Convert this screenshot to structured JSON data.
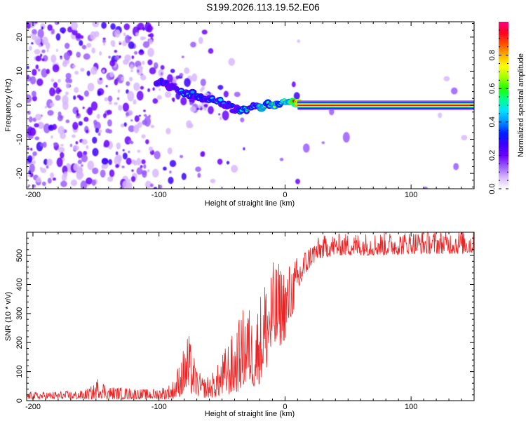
{
  "title": "S199.2026.113.19.52.E06",
  "chart_data": [
    {
      "type": "heatmap",
      "name": "spectrogram",
      "xlabel": "Height of straight line (km)",
      "ylabel": "Frequency (Hz)",
      "xlim": [
        -205,
        150
      ],
      "ylim": [
        -24.5,
        24.5
      ],
      "xticks": [
        -200,
        -100,
        0,
        100
      ],
      "yticks": [
        -20,
        -10,
        0,
        10,
        20
      ],
      "colorbar": {
        "label": "Normalized spectral amplitude",
        "range": [
          0,
          1
        ],
        "ticks": [
          0.0,
          0.2,
          0.4,
          0.6,
          0.8
        ],
        "colors": [
          "#ffffff",
          "#d8b8ff",
          "#9a5cff",
          "#6a00ff",
          "#3a00ff",
          "#0020ff",
          "#0090ff",
          "#00e0ff",
          "#00ff90",
          "#20ff00",
          "#a0ff00",
          "#ffff00",
          "#ffb000",
          "#ff5000",
          "#ff0020",
          "#ff0080"
        ]
      },
      "ridge": {
        "x": [
          -100,
          -92,
          -85,
          -78,
          -72,
          -65,
          -58,
          -52,
          -46,
          -40,
          -35,
          -30,
          -25,
          -20,
          -15,
          -10,
          -5,
          0,
          5,
          10,
          20,
          60,
          100,
          150
        ],
        "frequency": [
          7,
          5.5,
          4.5,
          3.5,
          3,
          2.2,
          1.5,
          1,
          0.2,
          -1.2,
          -1.5,
          -1.6,
          -0.5,
          -0.8,
          0.5,
          0,
          0.8,
          1.5,
          0.8,
          0.3,
          0,
          0,
          0,
          0
        ],
        "amplitude": [
          0.35,
          0.3,
          0.38,
          0.42,
          0.4,
          0.4,
          0.4,
          0.42,
          0.38,
          0.3,
          0.5,
          0.55,
          0.45,
          0.5,
          0.55,
          0.55,
          0.6,
          0.62,
          0.7,
          0.9,
          0.95,
          0.95,
          0.95,
          0.95
        ]
      }
    },
    {
      "type": "line",
      "name": "snr",
      "xlabel": "Height of straight line (km)",
      "ylabel": "SNR (10 * v/v)",
      "xlim": [
        -205,
        150
      ],
      "ylim": [
        0,
        580
      ],
      "xticks": [
        -200,
        -100,
        0,
        100
      ],
      "yticks": [
        0,
        100,
        200,
        300,
        400,
        500
      ],
      "color": "#ee2222",
      "series": [
        {
          "name": "SNR",
          "x": [
            -205,
            -160,
            -152,
            -148,
            -140,
            -110,
            -100,
            -90,
            -85,
            -80,
            -77,
            -74,
            -70,
            -65,
            -60,
            -55,
            -50,
            -45,
            -40,
            -35,
            -30,
            -27,
            -25,
            -20,
            -15,
            -10,
            -5,
            0,
            5,
            10,
            15,
            20,
            25,
            30,
            40,
            60,
            80,
            100,
            120,
            150
          ],
          "low": [
            5,
            5,
            5,
            10,
            5,
            5,
            5,
            5,
            10,
            20,
            20,
            20,
            15,
            10,
            10,
            10,
            15,
            20,
            20,
            40,
            50,
            60,
            40,
            60,
            100,
            150,
            180,
            210,
            280,
            350,
            420,
            460,
            480,
            490,
            500,
            500,
            500,
            505,
            505,
            505
          ],
          "high": [
            30,
            35,
            55,
            85,
            50,
            40,
            45,
            60,
            120,
            190,
            240,
            190,
            110,
            80,
            90,
            110,
            160,
            210,
            240,
            300,
            360,
            300,
            290,
            370,
            450,
            480,
            480,
            470,
            480,
            500,
            520,
            540,
            560,
            570,
            575,
            580,
            580,
            585,
            585,
            590
          ]
        }
      ]
    }
  ]
}
